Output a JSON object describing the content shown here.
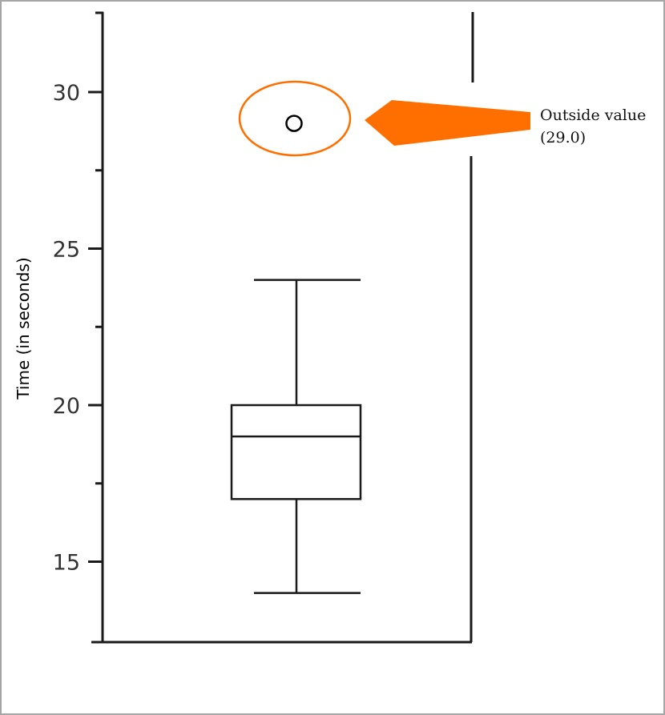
{
  "chart_data": {
    "type": "box",
    "ylabel": "Time (in seconds)",
    "xlabel": "",
    "ylim": [
      12.5,
      32.5
    ],
    "yticks": [
      15,
      20,
      25,
      30
    ],
    "ytick_labels": [
      "15",
      "20",
      "25",
      "30"
    ],
    "minor_yticks": [
      17.5,
      22.5,
      27.5
    ],
    "grid": false,
    "box": {
      "whisker_low": 14,
      "q1": 17,
      "median": 19,
      "q3": 20,
      "whisker_high": 24
    },
    "outliers": [
      29.0
    ],
    "annotation": {
      "line1": "Outside value",
      "line2": "(29.0)"
    },
    "colors": {
      "highlight": "#ff6f00",
      "axis": "#1a1a1a"
    }
  }
}
